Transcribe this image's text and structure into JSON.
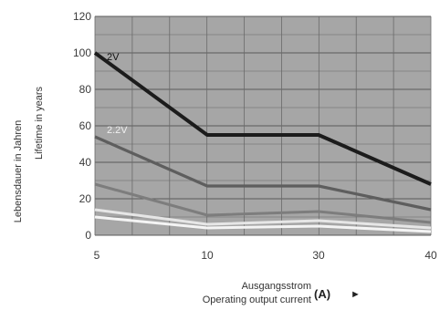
{
  "chart_data": {
    "type": "line",
    "title": "",
    "ylabel": [
      "Lebensdauer in Jahren",
      "Lifetime in years"
    ],
    "xlabel": [
      "Ausgangsstrom",
      "Operating output current"
    ],
    "x_unit": "(A)",
    "x_arrow": "►",
    "ylim": [
      0,
      120
    ],
    "y_ticks": [
      0,
      20,
      40,
      60,
      80,
      100,
      120
    ],
    "x_ticks": [
      "5",
      "10",
      "30",
      "40"
    ],
    "grid": true,
    "plot_background": "#a6a6a6",
    "series": [
      {
        "name": "2V",
        "color": "#1c1c1c",
        "points": [
          {
            "x": "5",
            "y": 100
          },
          {
            "x": "10",
            "y": 55
          },
          {
            "x": "30",
            "y": 55
          },
          {
            "x": "40",
            "y": 28
          }
        ]
      },
      {
        "name": "2.2V",
        "color": "#5e5e5e",
        "points": [
          {
            "x": "5",
            "y": 54
          },
          {
            "x": "10",
            "y": 27
          },
          {
            "x": "30",
            "y": 27
          },
          {
            "x": "40",
            "y": 14
          }
        ]
      },
      {
        "color": "#7d7d7d",
        "points": [
          {
            "x": "5",
            "y": 28
          },
          {
            "x": "10",
            "y": 11
          },
          {
            "x": "30",
            "y": 13
          },
          {
            "x": "40",
            "y": 7
          }
        ]
      },
      {
        "color": "#e6e6e6",
        "points": [
          {
            "x": "5",
            "y": 14
          },
          {
            "x": "10",
            "y": 6
          },
          {
            "x": "30",
            "y": 8
          },
          {
            "x": "40",
            "y": 4
          }
        ]
      },
      {
        "color": "#f4f4f4",
        "points": [
          {
            "x": "5",
            "y": 10
          },
          {
            "x": "10",
            "y": 4
          },
          {
            "x": "30",
            "y": 5
          },
          {
            "x": "40",
            "y": 2
          }
        ]
      }
    ]
  }
}
